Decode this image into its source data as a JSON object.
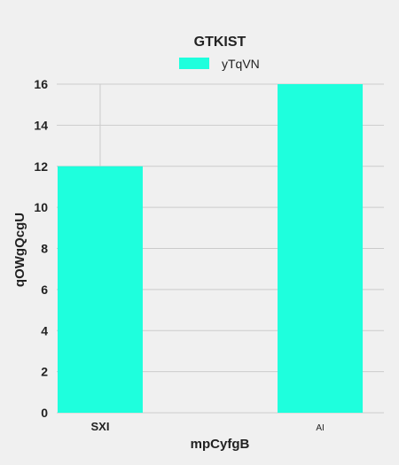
{
  "colors": {
    "background": "#f0f0f0",
    "bar": "#1effdd",
    "grid": "#cbcbcb",
    "text": "#222222"
  },
  "chart_data": {
    "type": "bar",
    "title": "GTKIST",
    "xlabel": "mpCyfgB",
    "ylabel": "qOWgQcgU",
    "categories": [
      "SXI",
      "AI"
    ],
    "series": [
      {
        "name": "yTqVN",
        "values": [
          12,
          16
        ]
      }
    ],
    "ylim": [
      0,
      16
    ],
    "yticks": [
      0,
      2,
      4,
      6,
      8,
      10,
      12,
      14,
      16
    ],
    "grid": true,
    "legend_position": "top-center"
  }
}
